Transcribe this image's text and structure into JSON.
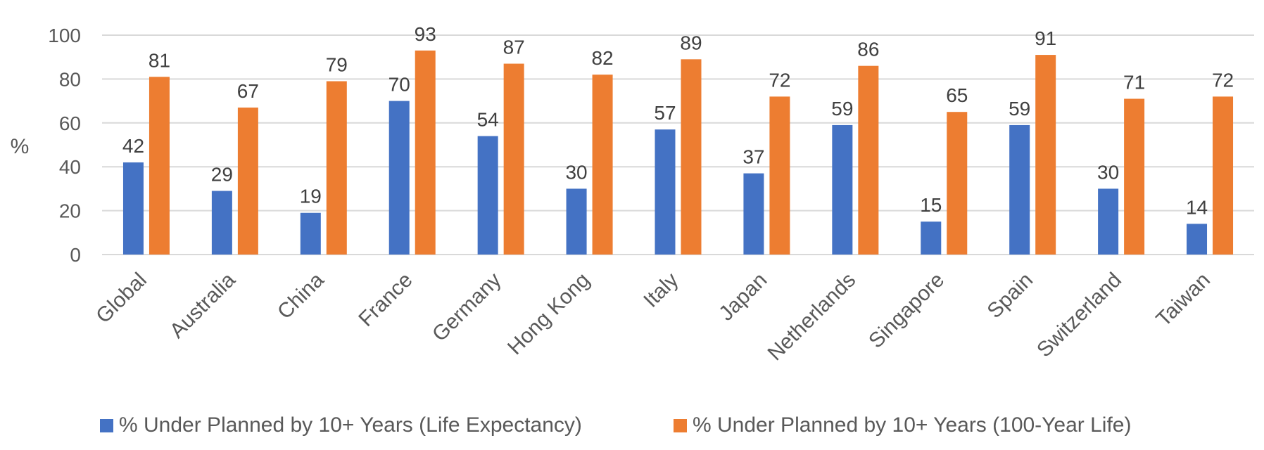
{
  "chart_data": {
    "type": "bar",
    "categories": [
      "Global",
      "Australia",
      "China",
      "France",
      "Germany",
      "Hong Kong",
      "Italy",
      "Japan",
      "Netherlands",
      "Singapore",
      "Spain",
      "Switzerland",
      "Taiwan"
    ],
    "series": [
      {
        "name": "% Under Planned by 10+ Years (Life Expectancy)",
        "color": "#4472C4",
        "values": [
          42,
          29,
          19,
          70,
          54,
          30,
          57,
          37,
          59,
          15,
          59,
          30,
          14
        ]
      },
      {
        "name": "% Under Planned by 10+ Years (100-Year Life)",
        "color": "#ED7D31",
        "values": [
          81,
          67,
          79,
          93,
          87,
          82,
          89,
          72,
          86,
          65,
          91,
          71,
          72
        ]
      }
    ],
    "ylabel": "%",
    "ylim": [
      0,
      100
    ],
    "yticks": [
      0,
      20,
      40,
      60,
      80,
      100
    ],
    "grid": true,
    "data_labels": true,
    "legend_position": "bottom"
  }
}
